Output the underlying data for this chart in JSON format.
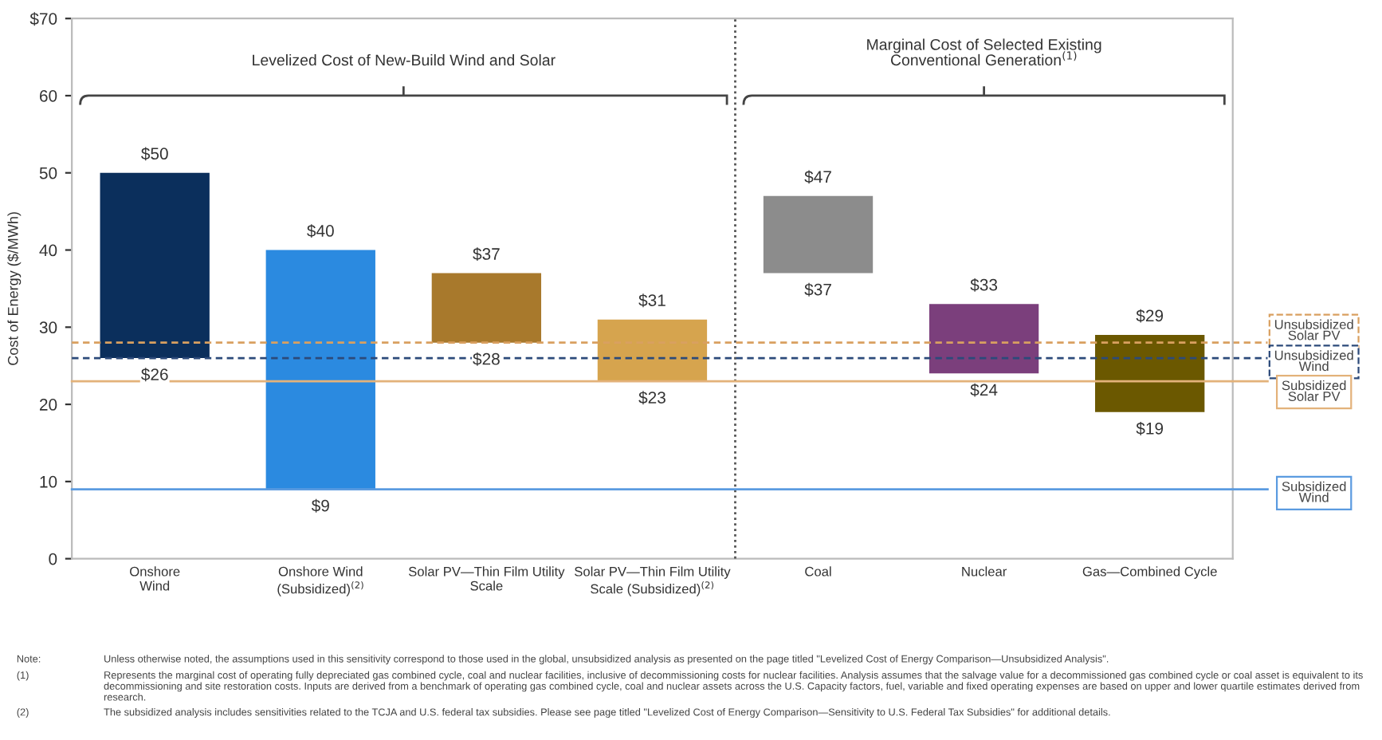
{
  "chart_data": {
    "type": "bar",
    "ylabel": "Cost of Energy ($/MWh)",
    "categories": [
      "Onshore\nWind",
      "Onshore Wind\n(Subsidized)$^{(2)}$",
      "Solar PV—Thin Film Utility\nScale",
      "Solar PV—Thin Film Utility\nScale (Subsidized)$^{(2)}$",
      "Coal",
      "Nuclear",
      "Gas—Combined Cycle"
    ],
    "base": [
      26,
      9,
      28,
      23,
      37,
      24,
      19
    ],
    "values": [
      24,
      31,
      9,
      8,
      10,
      9,
      10
    ],
    "colors": [
      "#0b2f5c",
      "#2b8ae0",
      "#a8792c",
      "#d6a44e",
      "#8c8c8c",
      "#7b3f7c",
      "#6b5800"
    ],
    "ylim": [
      0,
      70
    ],
    "yticks": [
      0,
      10,
      20,
      30,
      40,
      50,
      60,
      {
        "value": 70,
        "label": "$70"
      }
    ],
    "grid": false,
    "ref_lines": [
      {
        "axis": "y",
        "value": 28,
        "label": "Unsubsidized\nSolar PV",
        "color": "#d9a060",
        "line_style": "dashed"
      },
      {
        "axis": "y",
        "value": 26,
        "label": "Unsubsidized\nWind",
        "color": "#2c4a7a",
        "line_style": "dashed"
      },
      {
        "axis": "y",
        "value": 23,
        "label": "Subsidized\nSolar PV",
        "color": "#e3b27a",
        "line_style": "solid"
      },
      {
        "axis": "y",
        "value": 9,
        "label": "Subsidized\nWind",
        "color": "#5b9be0",
        "line_style": "solid"
      }
    ],
    "annotations": [
      "Levelized Cost of New-Build Wind and Solar",
      "Marginal Cost of Selected Existing\nConventional Generation$^{(1)}$",
      {
        "text": "$50",
        "x": "Onshore\nWind",
        "y": 50
      },
      {
        "text": "$26",
        "x": "Onshore\nWind",
        "y": 26
      },
      {
        "text": "$40",
        "x": "Onshore Wind\n(Subsidized)$^{(2)}$",
        "y": 40
      },
      {
        "text": "$9",
        "x": "Onshore Wind\n(Subsidized)$^{(2)}$",
        "y": 9
      },
      {
        "text": "$37",
        "x": "Solar PV—Thin Film Utility\nScale",
        "y": 37
      },
      {
        "text": "$28",
        "x": "Solar PV—Thin Film Utility\nScale",
        "y": 28
      },
      {
        "text": "$31",
        "x": "Solar PV—Thin Film Utility\nScale (Subsidized)$^{(2)}$",
        "y": 31
      },
      {
        "text": "$23",
        "x": "Solar PV—Thin Film Utility\nScale (Subsidized)$^{(2)}$",
        "y": 23
      },
      {
        "text": "$47",
        "x": "Coal",
        "y": 47
      },
      {
        "text": "$37",
        "x": "Coal",
        "y": 37
      },
      {
        "text": "$33",
        "x": "Nuclear",
        "y": 33
      },
      {
        "text": "$24",
        "x": "Nuclear",
        "y": 24
      },
      {
        "text": "$29",
        "x": "Gas—Combined Cycle",
        "y": 29
      },
      {
        "text": "$19",
        "x": "Gas—Combined Cycle",
        "y": 19
      },
      "Note: Unless otherwise noted, the assumptions used in this sensitivity correspond to those used in the global, unsubsidized analysis as presented on the page titled \"Levelized Cost of Energy Comparison—Unsubsidized Analysis\".",
      "(1) Represents the marginal cost of operating fully depreciated gas combined cycle, coal and nuclear facilities, inclusive of decommissioning costs for nuclear facilities. Analysis assumes that the salvage value for a decommissioned gas combined cycle or coal asset is equivalent to its decommissioning and site restoration costs. Inputs are derived from a benchmark of operating gas combined cycle, coal and nuclear assets across the U.S. Capacity factors, fuel, variable and fixed operating expenses are based on upper and lower quartile estimates derived from research.",
      "(2) The subsidized analysis includes sensitivities related to the TCJA and U.S. federal tax subsidies. Please see page titled \"Levelized Cost of Energy Comparison—Sensitivity to U.S. Federal Tax Subsidies\" for additional details."
    ]
  }
}
